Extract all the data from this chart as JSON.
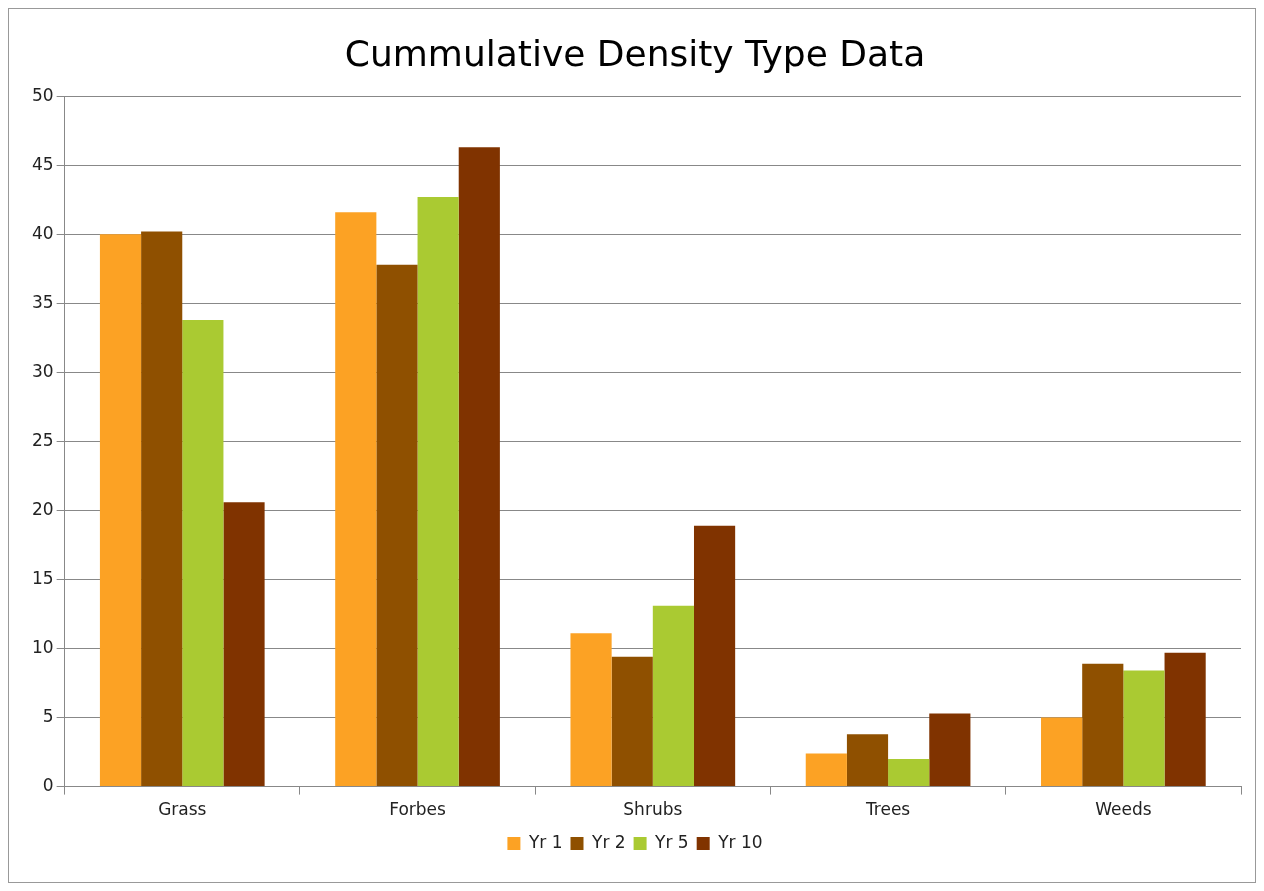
{
  "chart_data": {
    "type": "bar",
    "title": "Cummulative Density Type Data",
    "categories": [
      "Grass",
      "Forbes",
      "Shrubs",
      "Trees",
      "Weeds"
    ],
    "series": [
      {
        "name": "Yr 1",
        "color": "#fca224",
        "values": [
          40.0,
          41.6,
          11.1,
          2.4,
          5.0
        ]
      },
      {
        "name": "Yr 2",
        "color": "#8f5000",
        "values": [
          40.2,
          37.8,
          9.4,
          3.8,
          8.9
        ]
      },
      {
        "name": "Yr 5",
        "color": "#aaca32",
        "values": [
          33.8,
          42.7,
          13.1,
          2.0,
          8.4
        ]
      },
      {
        "name": "Yr 10",
        "color": "#803300",
        "values": [
          20.6,
          46.3,
          18.9,
          5.3,
          9.7
        ]
      }
    ],
    "ylim": [
      0,
      50
    ],
    "yticks": [
      0,
      5,
      10,
      15,
      20,
      25,
      30,
      35,
      40,
      45,
      50
    ],
    "grid": "y",
    "legend": "bottom"
  }
}
